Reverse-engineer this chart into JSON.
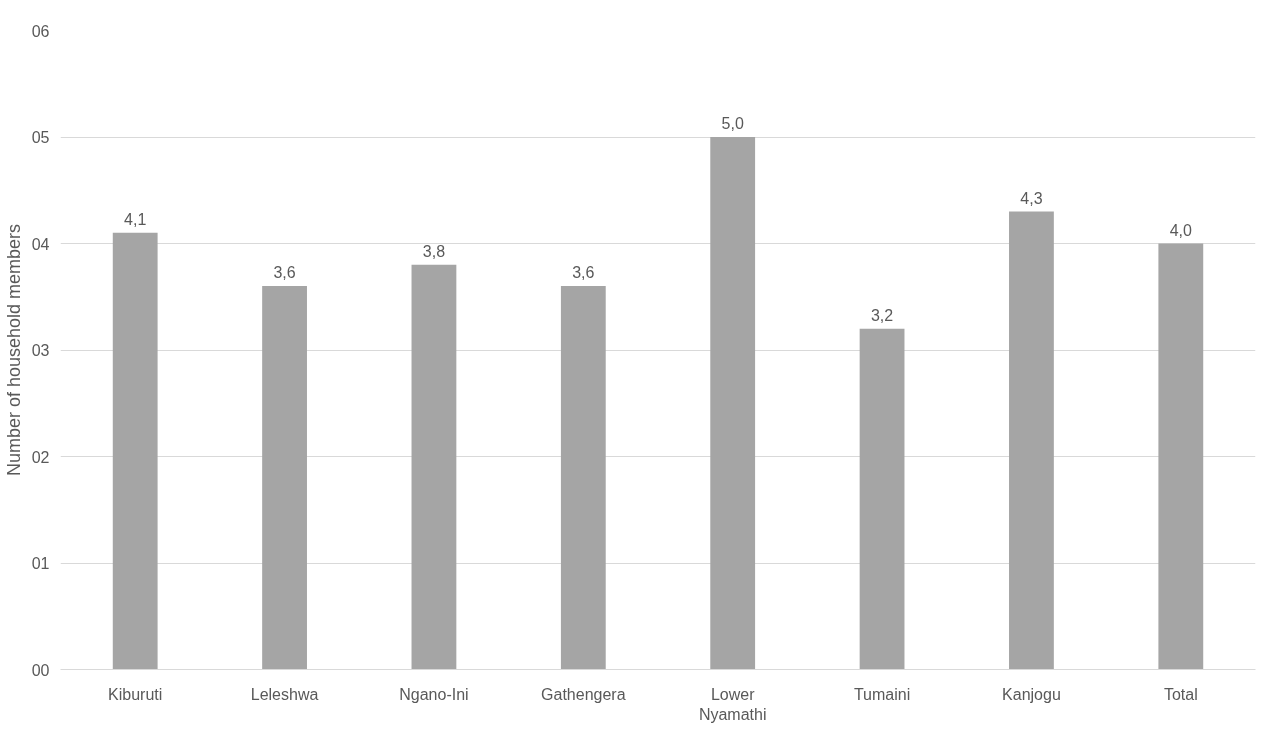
{
  "chart_data": {
    "type": "bar",
    "ylabel": "Number of household members",
    "categories": [
      "Kiburuti",
      "Leleshwa",
      "Ngano-Ini",
      "Gathengera",
      "Lower Nyamathi",
      "Tumaini",
      "Kanjogu",
      "Total"
    ],
    "values": [
      4.1,
      3.6,
      3.8,
      3.6,
      5.0,
      3.2,
      4.3,
      4.0
    ],
    "value_labels": [
      "4,1",
      "3,6",
      "3,8",
      "3,6",
      "5,0",
      "3,2",
      "4,3",
      "4,0"
    ],
    "color": "#a5a5a5",
    "ylim": [
      0,
      6
    ],
    "yticks": [
      {
        "value": 0,
        "label": "00"
      },
      {
        "value": 1,
        "label": "01"
      },
      {
        "value": 2,
        "label": "02"
      },
      {
        "value": 3,
        "label": "03"
      },
      {
        "value": 4,
        "label": "04"
      },
      {
        "value": 5,
        "label": "05"
      },
      {
        "value": 6,
        "label": "06"
      }
    ],
    "grid": "y"
  }
}
